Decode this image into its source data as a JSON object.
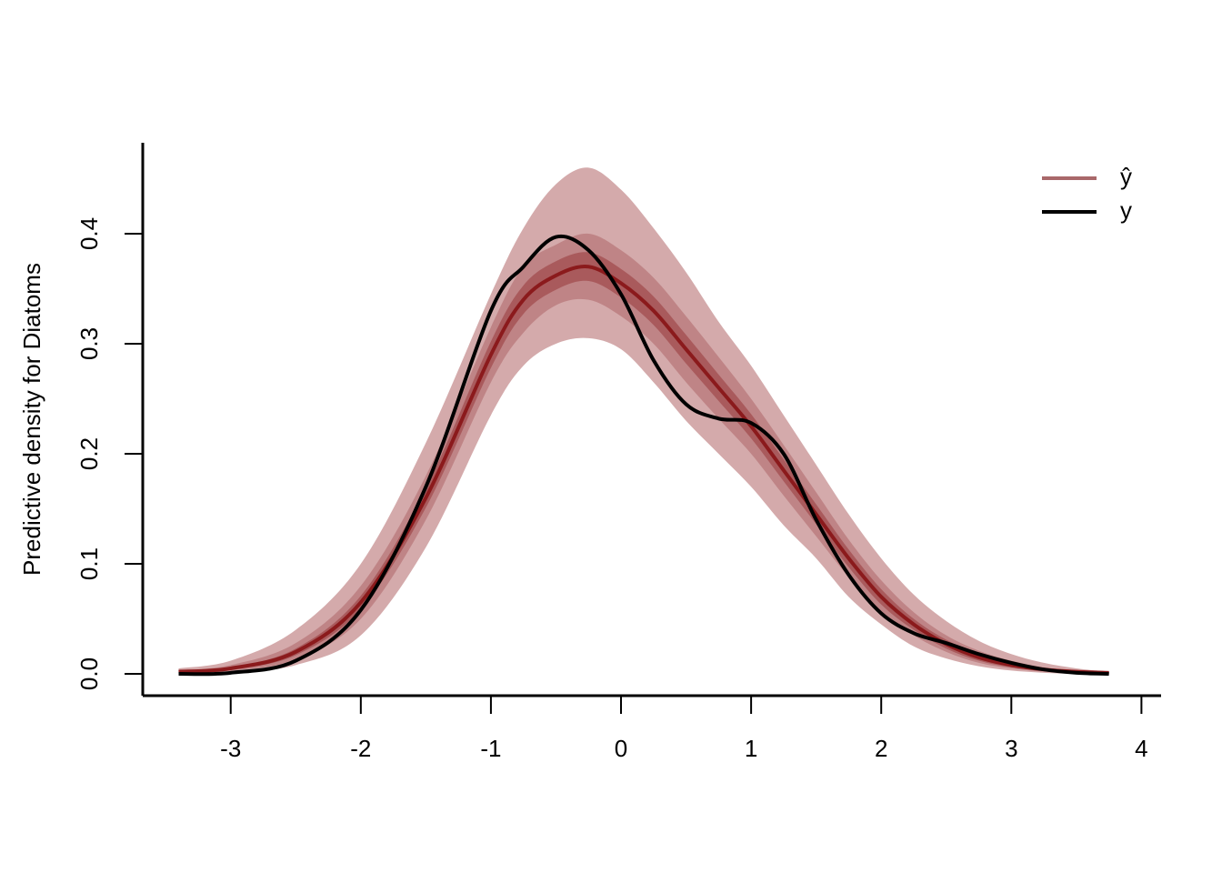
{
  "chart_data": {
    "type": "density_bands",
    "ylabel": "Predictive density for Diatoms",
    "x": [
      -3.4,
      -3,
      -2.5,
      -2,
      -1.5,
      -1,
      -0.75,
      -0.5,
      -0.25,
      0,
      0.25,
      0.5,
      0.75,
      1,
      1.25,
      1.5,
      1.75,
      2,
      2.25,
      2.5,
      2.75,
      3,
      3.25,
      3.5,
      3.75
    ],
    "bands": [
      {
        "color": "#d4aaab",
        "lower": [
          0,
          0.001,
          0.008,
          0.035,
          0.115,
          0.235,
          0.28,
          0.3,
          0.305,
          0.295,
          0.265,
          0.23,
          0.2,
          0.17,
          0.135,
          0.105,
          0.07,
          0.045,
          0.025,
          0.014,
          0.007,
          0.003,
          0.001,
          0,
          0
        ],
        "upper": [
          0.005,
          0.012,
          0.04,
          0.1,
          0.21,
          0.345,
          0.405,
          0.445,
          0.46,
          0.44,
          0.405,
          0.365,
          0.32,
          0.28,
          0.235,
          0.19,
          0.145,
          0.105,
          0.072,
          0.048,
          0.03,
          0.018,
          0.01,
          0.005,
          0.002
        ]
      },
      {
        "color": "#bf8486",
        "lower": [
          0.001,
          0.003,
          0.013,
          0.05,
          0.14,
          0.265,
          0.31,
          0.335,
          0.34,
          0.325,
          0.3,
          0.265,
          0.232,
          0.2,
          0.162,
          0.125,
          0.088,
          0.057,
          0.035,
          0.02,
          0.01,
          0.005,
          0.002,
          0.001,
          0
        ],
        "upper": [
          0.003,
          0.008,
          0.028,
          0.08,
          0.18,
          0.315,
          0.37,
          0.39,
          0.4,
          0.385,
          0.36,
          0.325,
          0.288,
          0.25,
          0.208,
          0.165,
          0.122,
          0.085,
          0.056,
          0.035,
          0.021,
          0.012,
          0.006,
          0.003,
          0.001
        ]
      },
      {
        "color": "#a95a5c",
        "lower": [
          0.0015,
          0.004,
          0.017,
          0.059,
          0.151,
          0.278,
          0.327,
          0.349,
          0.357,
          0.342,
          0.317,
          0.282,
          0.248,
          0.214,
          0.175,
          0.136,
          0.097,
          0.063,
          0.04,
          0.023,
          0.012,
          0.006,
          0.003,
          0.0015,
          0.0008
        ],
        "upper": [
          0.0025,
          0.006,
          0.023,
          0.071,
          0.169,
          0.302,
          0.353,
          0.375,
          0.383,
          0.368,
          0.343,
          0.308,
          0.272,
          0.236,
          0.195,
          0.154,
          0.113,
          0.077,
          0.05,
          0.031,
          0.018,
          0.01,
          0.005,
          0.0025,
          0.0012
        ]
      }
    ],
    "series": [
      {
        "name": "ŷ",
        "color": "#a9686a",
        "line_color": "#8b1a1c",
        "values": [
          0.002,
          0.005,
          0.02,
          0.065,
          0.16,
          0.29,
          0.34,
          0.362,
          0.37,
          0.355,
          0.33,
          0.295,
          0.26,
          0.225,
          0.185,
          0.145,
          0.105,
          0.07,
          0.045,
          0.027,
          0.015,
          0.008,
          0.004,
          0.002,
          0.001
        ]
      },
      {
        "name": "y",
        "color": "#000000",
        "values": [
          0,
          0.001,
          0.012,
          0.058,
          0.17,
          0.33,
          0.37,
          0.397,
          0.385,
          0.345,
          0.285,
          0.245,
          0.232,
          0.228,
          0.2,
          0.14,
          0.09,
          0.055,
          0.037,
          0.028,
          0.018,
          0.01,
          0.004,
          0.001,
          0
        ]
      }
    ],
    "xlim": [
      -3.676,
      4.151
    ],
    "ylim": [
      -0.0198,
      0.4826
    ],
    "xticks": [
      -3,
      -2,
      -1,
      0,
      1,
      2,
      3,
      4
    ],
    "yticks": [
      {
        "value": 0,
        "label": "0.0"
      },
      0.1,
      0.2,
      0.3,
      0.4
    ],
    "legend": "top-right"
  }
}
